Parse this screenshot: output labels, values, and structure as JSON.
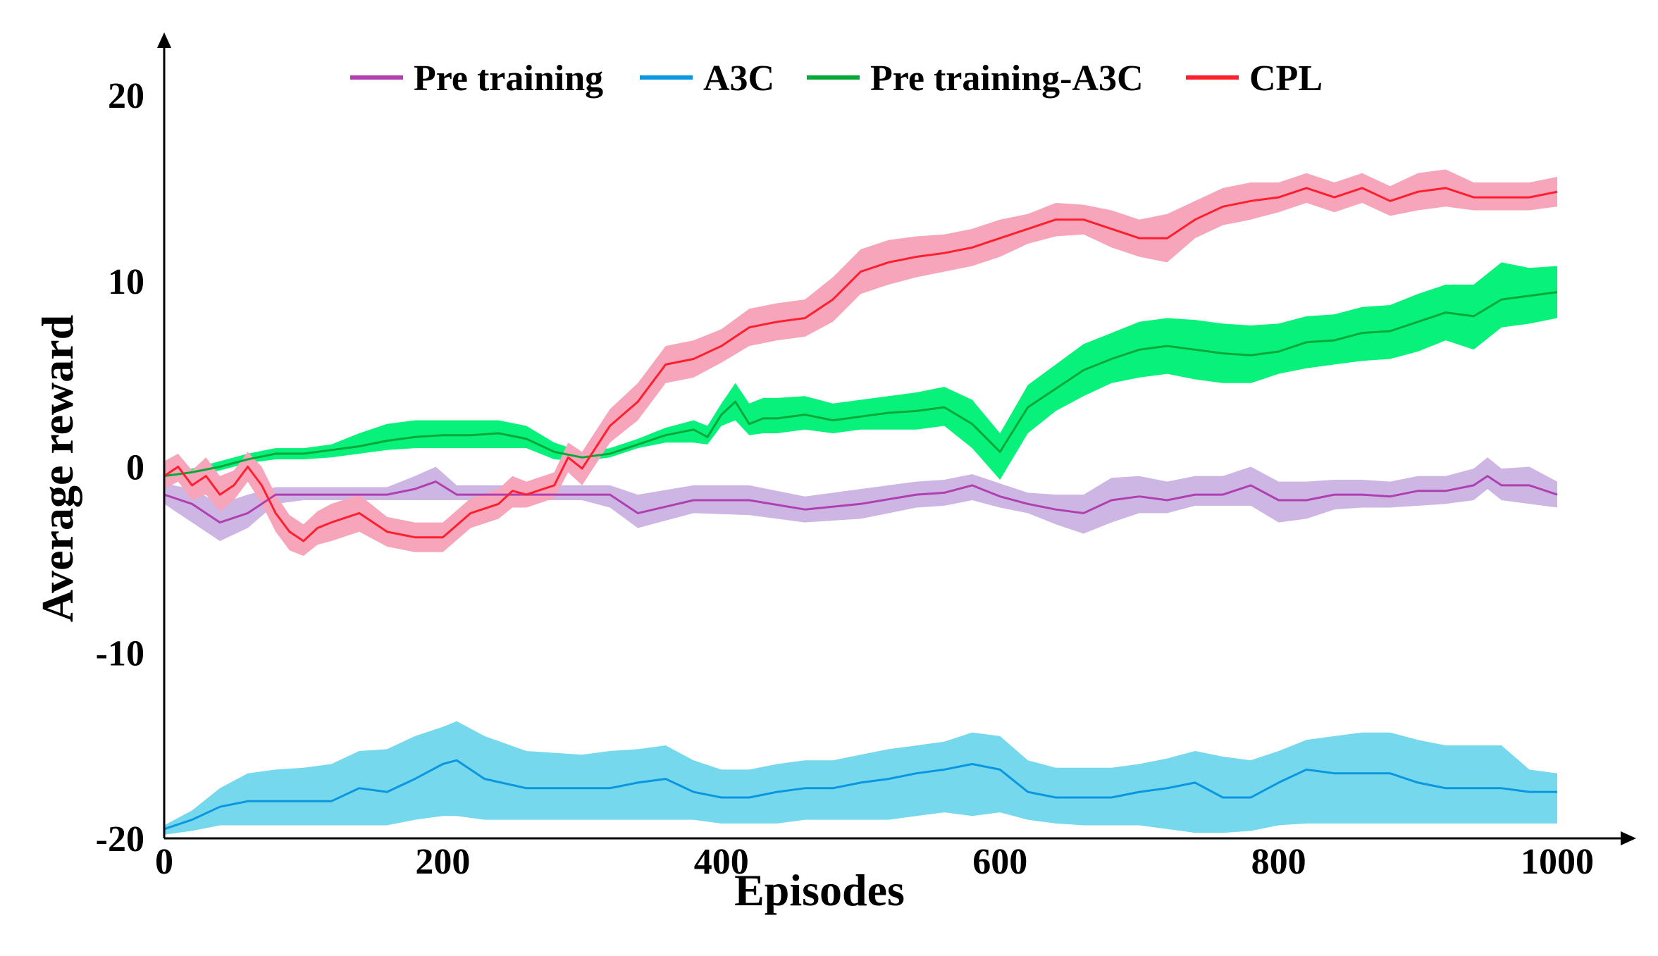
{
  "chart_data": {
    "type": "line",
    "title": "",
    "xlabel": "Episodes",
    "ylabel": "Average reward",
    "xlim": [
      0,
      1000
    ],
    "ylim": [
      -20,
      20
    ],
    "xticks": [
      0,
      200,
      400,
      600,
      800,
      1000
    ],
    "yticks": [
      -20,
      -10,
      0,
      10,
      20
    ],
    "x_tick_labels": [
      "0",
      "200",
      "400",
      "600",
      "800",
      "1000"
    ],
    "y_tick_labels": [
      "-20",
      "-10",
      "0",
      "10",
      "20"
    ],
    "legend_position": "top",
    "series": [
      {
        "name": "Pre training",
        "color": "#b040b0",
        "band_color": "#cdb6e4",
        "x": [
          0,
          20,
          40,
          60,
          80,
          100,
          120,
          140,
          160,
          180,
          195,
          210,
          240,
          280,
          300,
          320,
          340,
          380,
          420,
          460,
          500,
          540,
          560,
          580,
          600,
          620,
          640,
          660,
          680,
          700,
          720,
          740,
          760,
          780,
          800,
          820,
          840,
          860,
          880,
          900,
          920,
          940,
          950,
          960,
          980,
          1000
        ],
        "mean": [
          -1.5,
          -2,
          -3,
          -2.5,
          -1.5,
          -1.5,
          -1.5,
          -1.5,
          -1.5,
          -1.2,
          -0.8,
          -1.5,
          -1.5,
          -1.5,
          -1.5,
          -1.5,
          -2.5,
          -1.8,
          -1.8,
          -2.3,
          -2,
          -1.5,
          -1.4,
          -1,
          -1.6,
          -2,
          -2.3,
          -2.5,
          -1.8,
          -1.6,
          -1.8,
          -1.5,
          -1.5,
          -1,
          -1.8,
          -1.8,
          -1.5,
          -1.5,
          -1.6,
          -1.3,
          -1.3,
          -1,
          -0.5,
          -1,
          -1,
          -1.5
        ],
        "lower": [
          -2,
          -3,
          -4,
          -3.3,
          -2,
          -1.8,
          -1.8,
          -1.8,
          -1.8,
          -1.8,
          -1.8,
          -1.8,
          -1.8,
          -1.8,
          -1.8,
          -2.2,
          -3.3,
          -2.5,
          -2.6,
          -3,
          -2.8,
          -2.2,
          -2.1,
          -1.8,
          -2.2,
          -2.5,
          -3.1,
          -3.6,
          -3,
          -2.5,
          -2.5,
          -2.1,
          -2.1,
          -2.1,
          -3,
          -2.8,
          -2.3,
          -2.2,
          -2.2,
          -2.1,
          -2,
          -1.8,
          -1.2,
          -1.8,
          -2,
          -2.2
        ],
        "upper": [
          -0.9,
          -1.2,
          -2,
          -1.5,
          -1.1,
          -1.1,
          -1.1,
          -1.1,
          -1.1,
          -0.5,
          0,
          -1,
          -1,
          -1,
          -1,
          -1,
          -1.5,
          -1,
          -1,
          -1.6,
          -1.2,
          -0.8,
          -0.7,
          -0.4,
          -0.9,
          -1.4,
          -1.5,
          -1.5,
          -0.6,
          -0.5,
          -0.8,
          -0.5,
          -0.5,
          0,
          -0.8,
          -0.8,
          -0.7,
          -0.7,
          -0.8,
          -0.5,
          -0.5,
          -0.1,
          0.5,
          -0.1,
          0,
          -0.8
        ]
      },
      {
        "name": "A3C",
        "color": "#0b96e0",
        "band_color": "#75d8ec",
        "x": [
          0,
          20,
          40,
          60,
          80,
          100,
          120,
          140,
          160,
          180,
          200,
          210,
          230,
          260,
          300,
          320,
          340,
          360,
          380,
          400,
          420,
          440,
          460,
          480,
          500,
          520,
          540,
          560,
          580,
          600,
          620,
          640,
          660,
          680,
          700,
          720,
          740,
          760,
          780,
          800,
          820,
          840,
          860,
          880,
          900,
          920,
          940,
          960,
          980,
          1000
        ],
        "mean": [
          -19.5,
          -19,
          -18.3,
          -18,
          -18,
          -18,
          -18,
          -17.3,
          -17.5,
          -16.8,
          -16,
          -15.8,
          -16.8,
          -17.3,
          -17.3,
          -17.3,
          -17,
          -16.8,
          -17.5,
          -17.8,
          -17.8,
          -17.5,
          -17.3,
          -17.3,
          -17,
          -16.8,
          -16.5,
          -16.3,
          -16,
          -16.3,
          -17.5,
          -17.8,
          -17.8,
          -17.8,
          -17.5,
          -17.3,
          -17,
          -17.8,
          -17.8,
          -17,
          -16.3,
          -16.5,
          -16.5,
          -16.5,
          -17,
          -17.3,
          -17.3,
          -17.3,
          -17.5,
          -17.5
        ],
        "lower": [
          -19.8,
          -19.6,
          -19.3,
          -19.3,
          -19.3,
          -19.3,
          -19.3,
          -19.3,
          -19.3,
          -19,
          -18.8,
          -18.8,
          -19,
          -19,
          -19,
          -19,
          -19,
          -19,
          -19,
          -19.2,
          -19.2,
          -19.2,
          -19,
          -19,
          -19,
          -19,
          -18.8,
          -18.6,
          -18.8,
          -18.6,
          -19,
          -19.2,
          -19.3,
          -19.3,
          -19.3,
          -19.5,
          -19.7,
          -19.7,
          -19.6,
          -19.3,
          -19.2,
          -19.2,
          -19.2,
          -19.2,
          -19.2,
          -19.2,
          -19.2,
          -19.2,
          -19.2,
          -19.2
        ],
        "upper": [
          -19.3,
          -18.5,
          -17.3,
          -16.5,
          -16.3,
          -16.2,
          -16,
          -15.3,
          -15.2,
          -14.5,
          -14,
          -13.7,
          -14.5,
          -15.3,
          -15.5,
          -15.3,
          -15.2,
          -15,
          -15.8,
          -16.3,
          -16.3,
          -16,
          -15.8,
          -15.8,
          -15.5,
          -15.2,
          -15,
          -14.8,
          -14.3,
          -14.5,
          -15.8,
          -16.2,
          -16.2,
          -16.2,
          -16,
          -15.7,
          -15.3,
          -15.6,
          -15.8,
          -15.3,
          -14.7,
          -14.5,
          -14.3,
          -14.3,
          -14.7,
          -15,
          -15,
          -15,
          -16.3,
          -16.5
        ]
      },
      {
        "name": "Pre training-A3C",
        "color": "#06a83a",
        "band_color": "#08f17a",
        "x": [
          0,
          20,
          40,
          60,
          80,
          100,
          120,
          140,
          160,
          180,
          200,
          220,
          240,
          260,
          280,
          300,
          320,
          340,
          360,
          380,
          390,
          400,
          410,
          420,
          430,
          440,
          460,
          480,
          500,
          520,
          540,
          560,
          580,
          600,
          620,
          640,
          660,
          680,
          700,
          720,
          740,
          760,
          780,
          800,
          820,
          840,
          860,
          880,
          900,
          920,
          940,
          960,
          980,
          1000
        ],
        "mean": [
          -0.5,
          -0.3,
          0,
          0.4,
          0.7,
          0.7,
          0.9,
          1.1,
          1.4,
          1.6,
          1.7,
          1.7,
          1.8,
          1.5,
          0.8,
          0.5,
          0.7,
          1.2,
          1.7,
          2,
          1.6,
          2.8,
          3.5,
          2.3,
          2.6,
          2.6,
          2.8,
          2.5,
          2.7,
          2.9,
          3,
          3.2,
          2.3,
          0.8,
          3.2,
          4.2,
          5.2,
          5.8,
          6.3,
          6.5,
          6.3,
          6.1,
          6,
          6.2,
          6.7,
          6.8,
          7.2,
          7.3,
          7.8,
          8.3,
          8.1,
          9,
          9.2,
          9.4
        ],
        "lower": [
          -0.8,
          -0.5,
          -0.2,
          0.2,
          0.4,
          0.4,
          0.5,
          0.7,
          0.9,
          1,
          1,
          1,
          1,
          1,
          0.4,
          0.3,
          0.5,
          1,
          1.3,
          1.3,
          1.2,
          2.2,
          2.5,
          1.7,
          1.8,
          1.8,
          2,
          1.8,
          2,
          2,
          2,
          2.2,
          1,
          -0.7,
          1.8,
          3,
          3.8,
          4.5,
          4.8,
          5,
          4.7,
          4.5,
          4.5,
          5,
          5.3,
          5.5,
          5.7,
          5.8,
          6.2,
          6.8,
          6.3,
          7.5,
          7.7,
          8
        ],
        "upper": [
          -0.3,
          -0.1,
          0.3,
          0.7,
          1,
          1,
          1.2,
          1.8,
          2.3,
          2.5,
          2.5,
          2.5,
          2.5,
          2.2,
          1.3,
          0.8,
          1,
          1.5,
          2.1,
          2.5,
          2.2,
          3.4,
          4.5,
          3.4,
          3.7,
          3.7,
          3.8,
          3.4,
          3.6,
          3.8,
          4,
          4.3,
          3.6,
          1.8,
          4.4,
          5.5,
          6.6,
          7.2,
          7.8,
          8,
          7.9,
          7.7,
          7.6,
          7.7,
          8.1,
          8.2,
          8.6,
          8.7,
          9.3,
          9.8,
          9.8,
          11,
          10.7,
          10.8
        ]
      },
      {
        "name": "CPL",
        "color": "#ff1f2e",
        "band_color": "#f6a5bb",
        "x": [
          0,
          10,
          20,
          30,
          40,
          50,
          60,
          70,
          80,
          90,
          100,
          110,
          120,
          140,
          160,
          180,
          200,
          220,
          240,
          250,
          260,
          280,
          290,
          300,
          320,
          340,
          360,
          380,
          400,
          420,
          440,
          460,
          480,
          500,
          520,
          540,
          560,
          580,
          600,
          620,
          640,
          660,
          680,
          700,
          720,
          740,
          760,
          780,
          800,
          820,
          840,
          860,
          880,
          900,
          920,
          940,
          960,
          980,
          1000
        ],
        "mean": [
          -0.5,
          0,
          -1,
          -0.5,
          -1.5,
          -1,
          0,
          -1,
          -2.5,
          -3.5,
          -4,
          -3.3,
          -3,
          -2.5,
          -3.5,
          -3.8,
          -3.8,
          -2.5,
          -2,
          -1.3,
          -1.5,
          -1,
          0.5,
          -0.1,
          2.2,
          3.5,
          5.5,
          5.8,
          6.5,
          7.5,
          7.8,
          8,
          9,
          10.5,
          11,
          11.3,
          11.5,
          11.8,
          12.3,
          12.8,
          13.3,
          13.3,
          12.8,
          12.3,
          12.3,
          13.3,
          14,
          14.3,
          14.5,
          15,
          14.5,
          15,
          14.3,
          14.8,
          15,
          14.5,
          14.5,
          14.5,
          14.8
        ],
        "lower": [
          -1.2,
          -0.8,
          -1.8,
          -1.5,
          -2.4,
          -1.8,
          -0.8,
          -2,
          -3.5,
          -4.5,
          -4.8,
          -4.2,
          -4,
          -3.5,
          -4.3,
          -4.6,
          -4.6,
          -3.3,
          -2.8,
          -2.2,
          -2.2,
          -1.7,
          -0.3,
          -1,
          1.3,
          2.5,
          4.5,
          4.8,
          5.6,
          6.5,
          6.8,
          7,
          7.8,
          9.3,
          9.8,
          10.2,
          10.5,
          10.8,
          11.3,
          12,
          12.4,
          12.5,
          11.8,
          11.3,
          11,
          12.3,
          13,
          13.3,
          13.7,
          14.2,
          13.7,
          14.2,
          13.5,
          13.8,
          14,
          13.8,
          13.8,
          13.8,
          14
        ],
        "upper": [
          0.3,
          0.7,
          -0.2,
          0.5,
          -0.5,
          -0.2,
          0.8,
          0,
          -1.5,
          -2.6,
          -3.1,
          -2.4,
          -2,
          -1.5,
          -2.7,
          -3,
          -3,
          -1.7,
          -1.2,
          -0.5,
          -0.8,
          -0.3,
          1.3,
          0.8,
          3.1,
          4.5,
          6.5,
          6.8,
          7.4,
          8.5,
          8.8,
          9,
          10.2,
          11.7,
          12.2,
          12.4,
          12.5,
          12.8,
          13.3,
          13.6,
          14.2,
          14.1,
          13.8,
          13.3,
          13.6,
          14.3,
          15,
          15.3,
          15.3,
          15.8,
          15.3,
          15.8,
          15.1,
          15.8,
          16,
          15.3,
          15.3,
          15.3,
          15.6
        ]
      }
    ]
  }
}
